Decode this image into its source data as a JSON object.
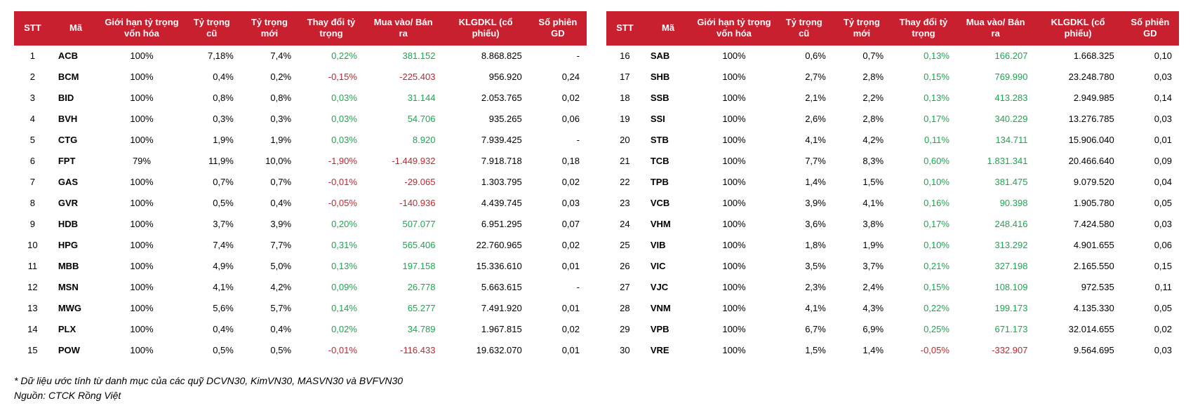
{
  "header_bg": "#c8202f",
  "pos_color": "#1aa84f",
  "neg_color": "#c1272d",
  "columns": {
    "stt": "STT",
    "ma": "Mã",
    "gh": "Giới hạn tỷ trọng vốn hóa",
    "cu": "Tỷ trọng cũ",
    "moi": "Tỷ trọng mới",
    "td": "Thay đổi tỷ trọng",
    "mb": "Mua vào/ Bán ra",
    "kl": "KLGDKL (cổ phiếu)",
    "sp": "Số phiên GD"
  },
  "rows_left": [
    {
      "stt": "1",
      "ma": "ACB",
      "gh": "100%",
      "cu": "7,18%",
      "moi": "7,4%",
      "td": "0,22%",
      "td_cls": "pos",
      "mb": "381.152",
      "mb_cls": "pos",
      "kl": "8.868.825",
      "sp": "-"
    },
    {
      "stt": "2",
      "ma": "BCM",
      "gh": "100%",
      "cu": "0,4%",
      "moi": "0,2%",
      "td": "-0,15%",
      "td_cls": "neg",
      "mb": "-225.403",
      "mb_cls": "neg",
      "kl": "956.920",
      "sp": "0,24"
    },
    {
      "stt": "3",
      "ma": "BID",
      "gh": "100%",
      "cu": "0,8%",
      "moi": "0,8%",
      "td": "0,03%",
      "td_cls": "pos",
      "mb": "31.144",
      "mb_cls": "pos",
      "kl": "2.053.765",
      "sp": "0,02"
    },
    {
      "stt": "4",
      "ma": "BVH",
      "gh": "100%",
      "cu": "0,3%",
      "moi": "0,3%",
      "td": "0,03%",
      "td_cls": "pos",
      "mb": "54.706",
      "mb_cls": "pos",
      "kl": "935.265",
      "sp": "0,06"
    },
    {
      "stt": "5",
      "ma": "CTG",
      "gh": "100%",
      "cu": "1,9%",
      "moi": "1,9%",
      "td": "0,03%",
      "td_cls": "pos",
      "mb": "8.920",
      "mb_cls": "pos",
      "kl": "7.939.425",
      "sp": "-"
    },
    {
      "stt": "6",
      "ma": "FPT",
      "gh": "79%",
      "cu": "11,9%",
      "moi": "10,0%",
      "td": "-1,90%",
      "td_cls": "neg",
      "mb": "-1.449.932",
      "mb_cls": "neg",
      "kl": "7.918.718",
      "sp": "0,18"
    },
    {
      "stt": "7",
      "ma": "GAS",
      "gh": "100%",
      "cu": "0,7%",
      "moi": "0,7%",
      "td": "-0,01%",
      "td_cls": "neg",
      "mb": "-29.065",
      "mb_cls": "neg",
      "kl": "1.303.795",
      "sp": "0,02"
    },
    {
      "stt": "8",
      "ma": "GVR",
      "gh": "100%",
      "cu": "0,5%",
      "moi": "0,4%",
      "td": "-0,05%",
      "td_cls": "neg",
      "mb": "-140.936",
      "mb_cls": "neg",
      "kl": "4.439.745",
      "sp": "0,03"
    },
    {
      "stt": "9",
      "ma": "HDB",
      "gh": "100%",
      "cu": "3,7%",
      "moi": "3,9%",
      "td": "0,20%",
      "td_cls": "pos",
      "mb": "507.077",
      "mb_cls": "pos",
      "kl": "6.951.295",
      "sp": "0,07"
    },
    {
      "stt": "10",
      "ma": "HPG",
      "gh": "100%",
      "cu": "7,4%",
      "moi": "7,7%",
      "td": "0,31%",
      "td_cls": "pos",
      "mb": "565.406",
      "mb_cls": "pos",
      "kl": "22.760.965",
      "sp": "0,02"
    },
    {
      "stt": "11",
      "ma": "MBB",
      "gh": "100%",
      "cu": "4,9%",
      "moi": "5,0%",
      "td": "0,13%",
      "td_cls": "pos",
      "mb": "197.158",
      "mb_cls": "pos",
      "kl": "15.336.610",
      "sp": "0,01"
    },
    {
      "stt": "12",
      "ma": "MSN",
      "gh": "100%",
      "cu": "4,1%",
      "moi": "4,2%",
      "td": "0,09%",
      "td_cls": "pos",
      "mb": "26.778",
      "mb_cls": "pos",
      "kl": "5.663.615",
      "sp": "-"
    },
    {
      "stt": "13",
      "ma": "MWG",
      "gh": "100%",
      "cu": "5,6%",
      "moi": "5,7%",
      "td": "0,14%",
      "td_cls": "pos",
      "mb": "65.277",
      "mb_cls": "pos",
      "kl": "7.491.920",
      "sp": "0,01"
    },
    {
      "stt": "14",
      "ma": "PLX",
      "gh": "100%",
      "cu": "0,4%",
      "moi": "0,4%",
      "td": "0,02%",
      "td_cls": "pos",
      "mb": "34.789",
      "mb_cls": "pos",
      "kl": "1.967.815",
      "sp": "0,02"
    },
    {
      "stt": "15",
      "ma": "POW",
      "gh": "100%",
      "cu": "0,5%",
      "moi": "0,5%",
      "td": "-0,01%",
      "td_cls": "neg",
      "mb": "-116.433",
      "mb_cls": "neg",
      "kl": "19.632.070",
      "sp": "0,01"
    }
  ],
  "rows_right": [
    {
      "stt": "16",
      "ma": "SAB",
      "gh": "100%",
      "cu": "0,6%",
      "moi": "0,7%",
      "td": "0,13%",
      "td_cls": "pos",
      "mb": "166.207",
      "mb_cls": "pos",
      "kl": "1.668.325",
      "sp": "0,10"
    },
    {
      "stt": "17",
      "ma": "SHB",
      "gh": "100%",
      "cu": "2,7%",
      "moi": "2,8%",
      "td": "0,15%",
      "td_cls": "pos",
      "mb": "769.990",
      "mb_cls": "pos",
      "kl": "23.248.780",
      "sp": "0,03"
    },
    {
      "stt": "18",
      "ma": "SSB",
      "gh": "100%",
      "cu": "2,1%",
      "moi": "2,2%",
      "td": "0,13%",
      "td_cls": "pos",
      "mb": "413.283",
      "mb_cls": "pos",
      "kl": "2.949.985",
      "sp": "0,14"
    },
    {
      "stt": "19",
      "ma": "SSI",
      "gh": "100%",
      "cu": "2,6%",
      "moi": "2,8%",
      "td": "0,17%",
      "td_cls": "pos",
      "mb": "340.229",
      "mb_cls": "pos",
      "kl": "13.276.785",
      "sp": "0,03"
    },
    {
      "stt": "20",
      "ma": "STB",
      "gh": "100%",
      "cu": "4,1%",
      "moi": "4,2%",
      "td": "0,11%",
      "td_cls": "pos",
      "mb": "134.711",
      "mb_cls": "pos",
      "kl": "15.906.040",
      "sp": "0,01"
    },
    {
      "stt": "21",
      "ma": "TCB",
      "gh": "100%",
      "cu": "7,7%",
      "moi": "8,3%",
      "td": "0,60%",
      "td_cls": "pos",
      "mb": "1.831.341",
      "mb_cls": "pos",
      "kl": "20.466.640",
      "sp": "0,09"
    },
    {
      "stt": "22",
      "ma": "TPB",
      "gh": "100%",
      "cu": "1,4%",
      "moi": "1,5%",
      "td": "0,10%",
      "td_cls": "pos",
      "mb": "381.475",
      "mb_cls": "pos",
      "kl": "9.079.520",
      "sp": "0,04"
    },
    {
      "stt": "23",
      "ma": "VCB",
      "gh": "100%",
      "cu": "3,9%",
      "moi": "4,1%",
      "td": "0,16%",
      "td_cls": "pos",
      "mb": "90.398",
      "mb_cls": "pos",
      "kl": "1.905.780",
      "sp": "0,05"
    },
    {
      "stt": "24",
      "ma": "VHM",
      "gh": "100%",
      "cu": "3,6%",
      "moi": "3,8%",
      "td": "0,17%",
      "td_cls": "pos",
      "mb": "248.416",
      "mb_cls": "pos",
      "kl": "7.424.580",
      "sp": "0,03"
    },
    {
      "stt": "25",
      "ma": "VIB",
      "gh": "100%",
      "cu": "1,8%",
      "moi": "1,9%",
      "td": "0,10%",
      "td_cls": "pos",
      "mb": "313.292",
      "mb_cls": "pos",
      "kl": "4.901.655",
      "sp": "0,06"
    },
    {
      "stt": "26",
      "ma": "VIC",
      "gh": "100%",
      "cu": "3,5%",
      "moi": "3,7%",
      "td": "0,21%",
      "td_cls": "pos",
      "mb": "327.198",
      "mb_cls": "pos",
      "kl": "2.165.550",
      "sp": "0,15"
    },
    {
      "stt": "27",
      "ma": "VJC",
      "gh": "100%",
      "cu": "2,3%",
      "moi": "2,4%",
      "td": "0,15%",
      "td_cls": "pos",
      "mb": "108.109",
      "mb_cls": "pos",
      "kl": "972.535",
      "sp": "0,11"
    },
    {
      "stt": "28",
      "ma": "VNM",
      "gh": "100%",
      "cu": "4,1%",
      "moi": "4,3%",
      "td": "0,22%",
      "td_cls": "pos",
      "mb": "199.173",
      "mb_cls": "pos",
      "kl": "4.135.330",
      "sp": "0,05"
    },
    {
      "stt": "29",
      "ma": "VPB",
      "gh": "100%",
      "cu": "6,7%",
      "moi": "6,9%",
      "td": "0,25%",
      "td_cls": "pos",
      "mb": "671.173",
      "mb_cls": "pos",
      "kl": "32.014.655",
      "sp": "0,02"
    },
    {
      "stt": "30",
      "ma": "VRE",
      "gh": "100%",
      "cu": "1,5%",
      "moi": "1,4%",
      "td": "-0,05%",
      "td_cls": "neg",
      "mb": "-332.907",
      "mb_cls": "neg",
      "kl": "9.564.695",
      "sp": "0,03"
    }
  ],
  "footnote_line1": "* Dữ liệu ước tính từ danh mục của  các quỹ DCVN30, KimVN30, MASVN30 và BVFVN30",
  "footnote_line2": "Nguồn: CTCK Rồng Việt"
}
